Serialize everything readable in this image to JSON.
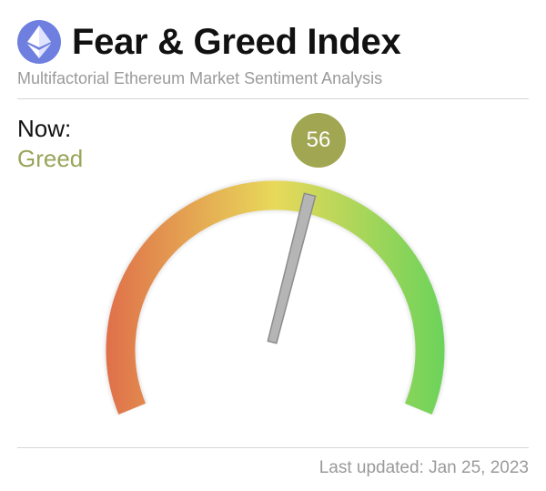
{
  "header": {
    "logo_icon": "ethereum-icon",
    "title": "Fear & Greed Index",
    "subtitle": "Multifactorial Ethereum Market Sentiment Analysis"
  },
  "status": {
    "now_label": "Now:",
    "now_value": "Greed",
    "index_value": "56",
    "index_numeric": 56,
    "scale_min": 0,
    "scale_max": 100
  },
  "footer": {
    "last_updated": "Last updated: Jan 25, 2023"
  },
  "colors": {
    "fear": "#e0704a",
    "neutral": "#e8d95a",
    "greed": "#6cd35a",
    "badge": "#a1a653",
    "needle": "#b5b5b5",
    "eth_badge": "#6f7fe0"
  }
}
